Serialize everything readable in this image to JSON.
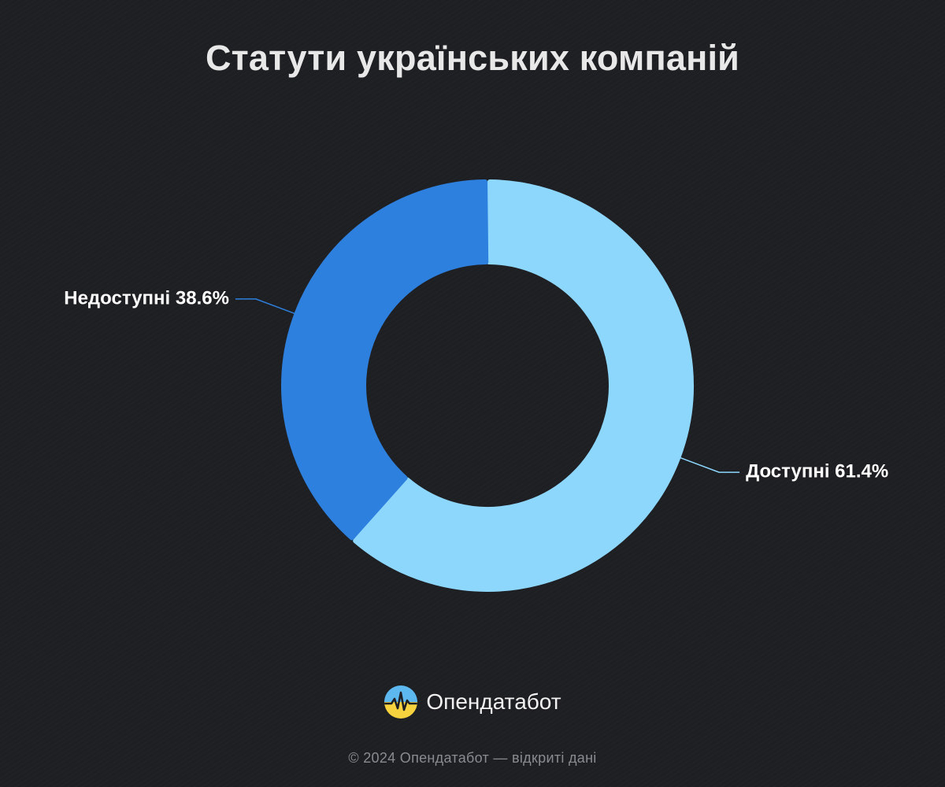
{
  "title": "Статути українських компаній",
  "chart_data": {
    "type": "pie",
    "variant": "donut",
    "title": "Статути українських компаній",
    "slices": [
      {
        "label": "Доступні",
        "value": 61.4,
        "display": "Доступні 61.4%",
        "color": "#8dd7fd"
      },
      {
        "label": "Недоступні",
        "value": 38.6,
        "display": "Недоступні 38.6%",
        "color": "#2d80de"
      }
    ],
    "start_angle": "12 o'clock",
    "direction": "clockwise",
    "legend": "none",
    "labels_placement": "outside"
  },
  "brand": {
    "name": "Опендатабот",
    "logo_icon": "opendatabot-logo-icon"
  },
  "footer": {
    "text": "© 2024 Опендатабот — відкриті дані"
  }
}
